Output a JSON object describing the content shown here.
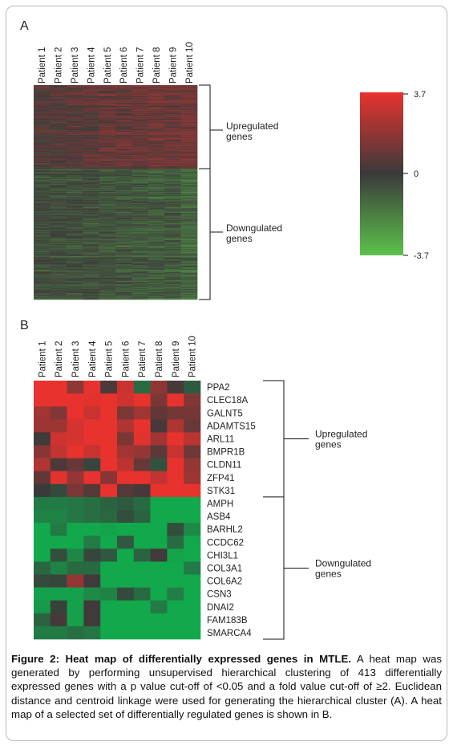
{
  "figure": {
    "panel_a_label": "A",
    "panel_b_label": "B",
    "caption_title": "Figure 2: Heat map of differentially expressed genes in MTLE.",
    "caption_body": " A heat map was generated by performing unsupervised hierarchical clustering of 413 differentially expressed genes with a p value cut-off of <0.05 and a fold value cut-off of ≥2. Euclidean distance and centroid linkage were used for generating the hierarchical cluster (A). A heat map of a selected set of differentially regulated genes is shown in B."
  },
  "colors": {
    "high": "#e8322e",
    "mid": "#3a3a3a",
    "low": "#5cc24a",
    "low_b": "#12a84c",
    "frame": "#b9b9b9"
  },
  "chart_data": [
    {
      "type": "heatmap",
      "panel": "A",
      "columns": [
        "Patient 1",
        "Patient 2",
        "Patient 3",
        "Patient 4",
        "Patient 5",
        "Patient 6",
        "Patient 7",
        "Patient 8",
        "Patient 9",
        "Patient 10"
      ],
      "row_count": 413,
      "groups": [
        {
          "label": "Upregulated genes",
          "label_lines": [
            "Upregulated",
            "genes"
          ],
          "direction": "up",
          "approx_rows": 165
        },
        {
          "label": "Downgulated genes",
          "label_lines": [
            "Downgulated",
            "genes"
          ],
          "direction": "down",
          "approx_rows": 248
        }
      ],
      "colorbar": {
        "max": 3.7,
        "mid": 0,
        "min": -3.7,
        "tick_labels": [
          "3.7",
          "0",
          "-3.7"
        ]
      }
    },
    {
      "type": "heatmap",
      "panel": "B",
      "columns": [
        "Patient 1",
        "Patient 2",
        "Patient 3",
        "Patient 4",
        "Patient 5",
        "Patient 6",
        "Patient 7",
        "Patient 8",
        "Patient 9",
        "Patient 10"
      ],
      "rows": [
        "PPA2",
        "CLEC18A",
        "GALNT5",
        "ADAMTS15",
        "ARL11",
        "BMPR1B",
        "CLDN11",
        "ZFP41",
        "STK31",
        "AMPH",
        "ASB4",
        "BARHL2",
        "CCDC62",
        "CHI3L1",
        "COL3A1",
        "COL6A2",
        "CSN3",
        "DNAI2",
        "FAM183B",
        "SMARCA4"
      ],
      "groups": [
        {
          "label": "Upregulated genes",
          "label_lines": [
            "Upregulated",
            "genes"
          ],
          "direction": "up",
          "rows": 9
        },
        {
          "label": "Downgulated genes",
          "label_lines": [
            "Downgulated",
            "genes"
          ],
          "direction": "down",
          "rows": 11
        }
      ],
      "values": [
        [
          3.0,
          3.4,
          1.3,
          3.2,
          0.3,
          2.2,
          -1.2,
          1.3,
          0.2,
          -0.8
        ],
        [
          2.9,
          3.5,
          3.2,
          2.6,
          2.8,
          2.3,
          3.1,
          1.0,
          2.7,
          1.1
        ],
        [
          1.6,
          1.1,
          2.8,
          2.2,
          3.3,
          1.0,
          1.6,
          0.6,
          0.9,
          0.9
        ],
        [
          1.5,
          1.5,
          2.4,
          2.9,
          3.4,
          1.8,
          3.0,
          0.2,
          1.8,
          0.7
        ],
        [
          0.1,
          2.3,
          2.4,
          3.0,
          3.3,
          1.0,
          2.6,
          1.6,
          3.2,
          2.0
        ],
        [
          1.2,
          2.1,
          3.4,
          2.2,
          3.5,
          1.6,
          1.4,
          0.5,
          2.2,
          0.8
        ],
        [
          1.8,
          0.3,
          0.7,
          -0.3,
          3.5,
          2.0,
          0.7,
          -0.6,
          3.2,
          1.4
        ],
        [
          0.6,
          2.6,
          1.4,
          2.7,
          1.2,
          3.3,
          2.8,
          2.1,
          3.1,
          1.5
        ],
        [
          0.0,
          -0.4,
          1.0,
          0.4,
          3.5,
          0.4,
          0.2,
          3.1,
          3.1,
          3.1
        ],
        [
          -1.6,
          -1.6,
          -1.5,
          -1.3,
          -1.0,
          -0.8,
          -1.2,
          -2.7,
          -2.7,
          -2.7
        ],
        [
          -1.8,
          -1.8,
          -1.5,
          -1.3,
          -1.1,
          -0.5,
          -1.0,
          -2.7,
          -2.7,
          -2.7
        ],
        [
          -2.7,
          -1.6,
          -2.7,
          -2.7,
          -2.6,
          -2.7,
          -2.7,
          -2.7,
          -0.5,
          -2.0
        ],
        [
          -2.7,
          -2.7,
          -2.7,
          -1.6,
          -2.7,
          -0.7,
          -2.7,
          -2.7,
          -1.2,
          -2.7
        ],
        [
          -2.7,
          -0.5,
          -1.9,
          -0.3,
          -0.7,
          -2.7,
          -1.0,
          0.1,
          -2.6,
          -2.7
        ],
        [
          -1.1,
          -1.8,
          -1.2,
          -1.2,
          -2.7,
          -2.7,
          -2.7,
          -2.7,
          -2.7,
          -1.6
        ],
        [
          -0.4,
          -0.3,
          1.4,
          0.1,
          -2.7,
          -2.7,
          -2.7,
          -2.7,
          -2.7,
          -2.7
        ],
        [
          -2.5,
          -2.5,
          -2.5,
          -2.0,
          -1.8,
          -0.4,
          -1.2,
          -2.7,
          -1.7,
          -2.7
        ],
        [
          -2.3,
          -0.2,
          -2.5,
          0.1,
          -2.7,
          -2.7,
          -2.7,
          -1.6,
          -2.7,
          -2.7
        ],
        [
          -1.0,
          0.2,
          -2.5,
          0.1,
          -2.7,
          -2.7,
          -2.7,
          -2.7,
          -2.7,
          -2.7
        ],
        [
          -1.6,
          -1.6,
          -1.3,
          -1.5,
          -2.7,
          -2.7,
          -2.7,
          -2.7,
          -2.7,
          -2.7
        ]
      ]
    }
  ]
}
